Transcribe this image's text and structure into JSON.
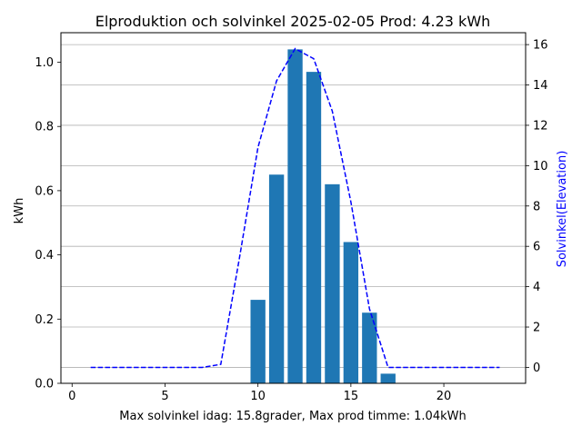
{
  "chart_data": {
    "type": "bar",
    "title": "Elproduktion och solvinkel 2025-02-05 Prod: 4.23 kWh",
    "xlabel": "Max solvinkel idag: 15.8grader, Max prod timme: 1.04kWh",
    "ylabel": "kWh",
    "y2label": "Solvinkel(Elevation)",
    "xlim": [
      -0.6,
      24.4
    ],
    "ylim": [
      0,
      1.092
    ],
    "y2lim": [
      -0.79,
      16.59
    ],
    "x_ticks": [
      0,
      5,
      10,
      15,
      20
    ],
    "y_ticks": [
      0.0,
      0.2,
      0.4,
      0.6,
      0.8,
      1.0
    ],
    "y2_ticks": [
      0,
      2,
      4,
      6,
      8,
      10,
      12,
      14,
      16
    ],
    "grid": "horizontal, right axis",
    "bars": {
      "color": "#1f77b4",
      "x": [
        10,
        11,
        12,
        13,
        14,
        15,
        16,
        17
      ],
      "values": [
        0.26,
        0.65,
        1.04,
        0.97,
        0.62,
        0.44,
        0.22,
        0.03
      ]
    },
    "line": {
      "color": "#0000ff",
      "style": "dashed",
      "x": [
        1,
        2,
        3,
        4,
        5,
        6,
        7,
        8,
        9,
        10,
        11,
        12,
        13,
        14,
        15,
        16,
        17,
        18,
        19,
        20,
        21,
        22,
        23
      ],
      "values": [
        0,
        0,
        0,
        0,
        0,
        0,
        0,
        0.15,
        5.4,
        10.9,
        14.2,
        15.8,
        15.3,
        12.7,
        8.2,
        2.9,
        0,
        0,
        0,
        0,
        0,
        0,
        0
      ]
    }
  }
}
